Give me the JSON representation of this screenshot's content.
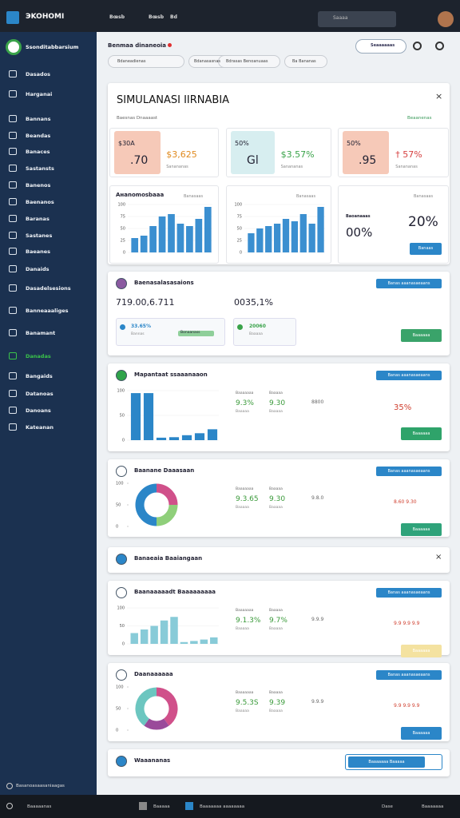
{
  "topbar": {
    "brand": "ЭKOHOMI",
    "menu": [
      "Bœsb",
      "Bœsb",
      "Bd"
    ],
    "search": "Saaaa"
  },
  "sidebar": {
    "header": "Ssonditabbarsium",
    "items": [
      "Dasados",
      "Harganai",
      "Bannans",
      "Beandas",
      "Banaces",
      "Sastansts",
      "Banenos",
      "Baenanos",
      "Baranas",
      "Sastanes",
      "Baeanes",
      "Danaids",
      "Dasadelsesions",
      "Banneaaaliges",
      "Banamant",
      "Danadas",
      "Bangaids",
      "Datanoas",
      "Danoans",
      "Kateanan"
    ],
    "active": 15,
    "footer": "Basanoasaasaniaagas"
  },
  "header": {
    "title": "Benmaa dinaneoia",
    "chips": [
      "Bdaneadienas",
      "Bdanasasnas",
      "Bdrasas Benoanuaas",
      "Ba Bananas"
    ],
    "button": "Seaaaaaas"
  },
  "simulation": {
    "title": "SIMULANASI IIRNABIA",
    "subtitle": "Baesnas Dnaaaast",
    "link": "Beaanenas",
    "panels": [
      {
        "badge": "$30A",
        "big": ".70",
        "value": "$3,625",
        "value_sub": "Sanananas",
        "box_color": "#f6c9b8",
        "value_color": "#e08a1e",
        "chart_title": "Aнanomosbaaa",
        "chart_note": "Banasaas",
        "chart": {
          "values": [
            30,
            35,
            55,
            75,
            80,
            60,
            55,
            70,
            95
          ],
          "ylim": [
            0,
            100
          ],
          "yticks": [
            0,
            25,
            50,
            75,
            100
          ],
          "color": "#3b8fd0"
        }
      },
      {
        "badge": "50%",
        "big": "Gl",
        "value": "$3.57%",
        "value_sub": "Sanananas",
        "box_color": "#d7eef0",
        "value_color": "#3aa34a",
        "chart_title": null,
        "chart_note": "Banasaas",
        "chart": {
          "values": [
            40,
            50,
            55,
            60,
            70,
            65,
            80,
            60,
            95
          ],
          "ylim": [
            0,
            100
          ],
          "yticks": [
            0,
            25,
            50,
            75,
            100
          ],
          "color": "#3b8fd0"
        }
      },
      {
        "badge": "50%",
        "big": ".95",
        "value": "† 57%",
        "value_sub": "Sanananas",
        "box_color": "#f6c9b8",
        "value_color": "#d64040",
        "chart_title": null,
        "chart_note": "Banasaas",
        "note": "Baoanaaas",
        "percent_a": "00%",
        "percent_b": "20%",
        "button": "Banaas"
      }
    ]
  },
  "cards": [
    {
      "kind": "summary",
      "title": "Baenasalasasaions",
      "button": "Banas aaanasaeaans",
      "big_a": "719.00,6.711",
      "big_b": "0035,1%",
      "box_a_value": "33.65%",
      "box_a_sub": "Bannas",
      "progress": "Bonaanass",
      "box_b_value": "20060",
      "box_b_sub": "Baaaaa",
      "action": "Baaaaaa",
      "action_color": "#3aa36a"
    },
    {
      "kind": "bar",
      "title": "Mapantaat ssaaanaaon",
      "button": "Banas aaanasaeaans",
      "chart": {
        "values": [
          95,
          95,
          5,
          6,
          10,
          14,
          22
        ],
        "ylim": [
          0,
          100
        ],
        "yticks": [
          0,
          50,
          100
        ],
        "color": "#2b86c8"
      },
      "stats": [
        {
          "label": "Baaaaaaa",
          "value": "9.3%",
          "sub": "Baaaaa"
        },
        {
          "label": "Baaaaa",
          "value": "9.30",
          "sub": "Baaaaa"
        }
      ],
      "extra": "8800",
      "right": "35%",
      "action": "Baaaaaa",
      "action_color": "#2fa36a"
    },
    {
      "kind": "donut",
      "title": "Baanane Daaasaan",
      "button": "Banas aaanasaeaans",
      "chart": {
        "values": [
          25,
          25,
          50
        ],
        "colors": [
          "#d0508a",
          "#8fcf7a",
          "#2b86c8"
        ],
        "yticks": [
          0,
          50,
          100
        ]
      },
      "stats": [
        {
          "label": "Baaaaaaa",
          "value": "9.3.65",
          "sub": "Baaaaa"
        },
        {
          "label": "Baaaaa",
          "value": "9.30",
          "sub": "Baaaaa"
        }
      ],
      "extra": "9.8.0",
      "right": "8.60 9.30",
      "action": "Baaaaaa",
      "action_color": "#2fa37a"
    },
    {
      "kind": "collapsed",
      "title": "Banaeaia Baaiangaan"
    },
    {
      "kind": "bar",
      "title": "Baanaaaaadt Baaaaaaaaa",
      "button": "Banas aaanasaeaans",
      "chart": {
        "values": [
          30,
          40,
          50,
          65,
          75,
          5,
          8,
          12,
          18
        ],
        "ylim": [
          0,
          100
        ],
        "yticks": [
          0,
          50,
          100
        ],
        "color": "#88cbd8"
      },
      "stats": [
        {
          "label": "Baaaaaaa",
          "value": "9.1.3%",
          "sub": "Baaaaa"
        },
        {
          "label": "Baaaaa",
          "value": "9.7%",
          "sub": "Baaaaa"
        }
      ],
      "extra": "9.9.9",
      "right": "9.9 9.9 9.9",
      "action": "Baaaaaa",
      "action_color": "#f4e2a0"
    },
    {
      "kind": "donut",
      "title": "Daanaaaaaa",
      "button": "Banas aaanasaeaans",
      "chart": {
        "values": [
          40,
          20,
          40
        ],
        "colors": [
          "#d0508a",
          "#9a4a9a",
          "#6cc6c0"
        ],
        "yticks": [
          0,
          50,
          100
        ]
      },
      "stats": [
        {
          "label": "Baaaaaaa",
          "value": "9.5.3S",
          "sub": "Baaaaa"
        },
        {
          "label": "Baaaaa",
          "value": "9.39",
          "sub": "Baaaaa"
        }
      ],
      "extra": "9.9.9",
      "right": "9.9 9.9 9.9",
      "action": "Baaaaaa",
      "action_color": "#2b86c8"
    },
    {
      "kind": "footer",
      "title": "Waaananas",
      "button": "Baaaaaaa Baaaaa"
    }
  ],
  "taskbar": {
    "start": "Baaaaanas",
    "apps": [
      "Baaaaa",
      "Baaaaaaa aaaaaaaa"
    ],
    "tray": [
      "Dase",
      "Baaaaaaa"
    ]
  }
}
